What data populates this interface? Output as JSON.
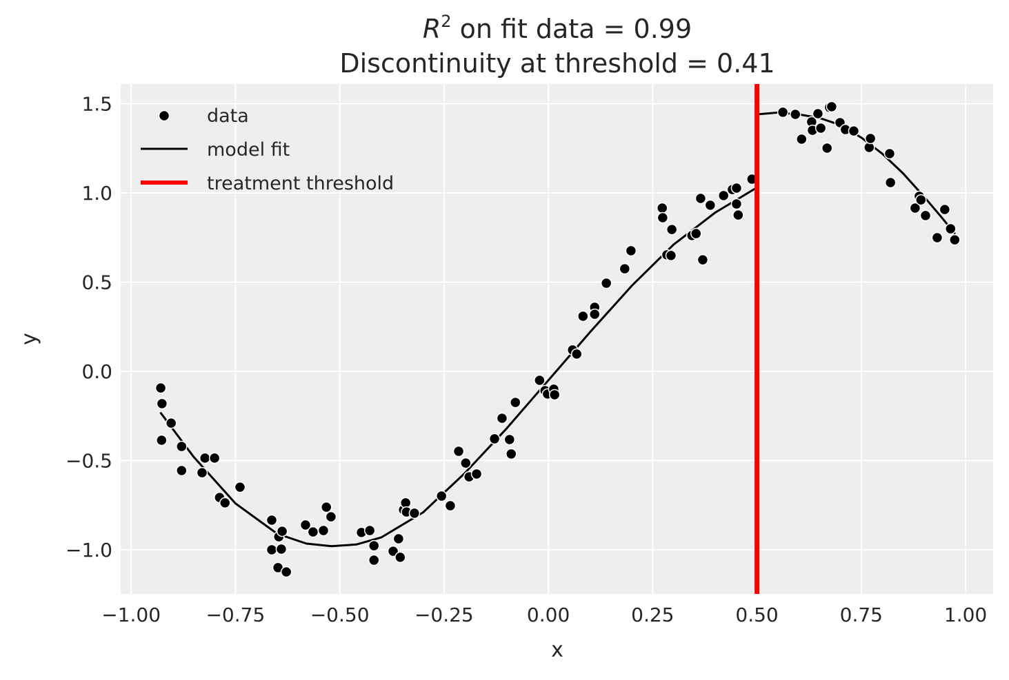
{
  "chart_data": {
    "type": "scatter",
    "title": {
      "line1_symbol": "R",
      "line1_superscript": "2",
      "line1_text": " on fit data = 0.99",
      "line2": "Discontinuity at threshold = 0.41"
    },
    "xlabel": "x",
    "ylabel": "y",
    "xlim": [
      -1.025,
      1.066
    ],
    "ylim": [
      -1.247,
      1.61
    ],
    "grid": true,
    "legend_placement": "top-left",
    "x_ticks": [
      -1.0,
      -0.75,
      -0.5,
      -0.25,
      0.0,
      0.25,
      0.5,
      0.75,
      1.0
    ],
    "x_tick_labels": [
      "−1.00",
      "−0.75",
      "−0.50",
      "−0.25",
      "0.00",
      "0.25",
      "0.50",
      "0.75",
      "1.00"
    ],
    "y_ticks": [
      -1.0,
      -0.5,
      0.0,
      0.5,
      1.0,
      1.5
    ],
    "y_tick_labels": [
      "−1.0",
      "−0.5",
      "0.0",
      "0.5",
      "1.0",
      "1.5"
    ],
    "colors": {
      "plot_background": "#eeeeee",
      "grid": "#ffffff",
      "points": "#000000",
      "fit": "#000000",
      "threshold": "#ff0000"
    },
    "series": [
      {
        "name": "data",
        "kind": "scatter",
        "points": [
          [
            -0.929,
            -0.093
          ],
          [
            -0.926,
            -0.181
          ],
          [
            -0.927,
            -0.386
          ],
          [
            -0.904,
            -0.29
          ],
          [
            -0.879,
            -0.421
          ],
          [
            -0.879,
            -0.556
          ],
          [
            -0.83,
            -0.568
          ],
          [
            -0.823,
            -0.486
          ],
          [
            -0.8,
            -0.486
          ],
          [
            -0.788,
            -0.707
          ],
          [
            -0.775,
            -0.737
          ],
          [
            -0.739,
            -0.649
          ],
          [
            -0.663,
            -0.834
          ],
          [
            -0.663,
            -1.0
          ],
          [
            -0.648,
            -1.1
          ],
          [
            -0.646,
            -0.927
          ],
          [
            -0.64,
            -0.996
          ],
          [
            -0.638,
            -0.896
          ],
          [
            -0.628,
            -1.124
          ],
          [
            -0.582,
            -0.861
          ],
          [
            -0.564,
            -0.9
          ],
          [
            -0.539,
            -0.892
          ],
          [
            -0.532,
            -0.761
          ],
          [
            -0.521,
            -0.815
          ],
          [
            -0.448,
            -0.903
          ],
          [
            -0.428,
            -0.892
          ],
          [
            -0.418,
            -0.977
          ],
          [
            -0.418,
            -1.058
          ],
          [
            -0.372,
            -1.008
          ],
          [
            -0.359,
            -0.938
          ],
          [
            -0.355,
            -1.042
          ],
          [
            -0.347,
            -0.776
          ],
          [
            -0.342,
            -0.737
          ],
          [
            -0.34,
            -0.788
          ],
          [
            -0.321,
            -0.795
          ],
          [
            -0.256,
            -0.699
          ],
          [
            -0.235,
            -0.753
          ],
          [
            -0.215,
            -0.448
          ],
          [
            -0.198,
            -0.514
          ],
          [
            -0.19,
            -0.591
          ],
          [
            -0.172,
            -0.575
          ],
          [
            -0.129,
            -0.378
          ],
          [
            -0.111,
            -0.263
          ],
          [
            -0.093,
            -0.382
          ],
          [
            -0.089,
            -0.463
          ],
          [
            -0.079,
            -0.174
          ],
          [
            -0.021,
            -0.05
          ],
          [
            -0.008,
            -0.108
          ],
          [
            -0.002,
            -0.127
          ],
          [
            0.013,
            -0.1
          ],
          [
            0.015,
            -0.131
          ],
          [
            0.058,
            0.12
          ],
          [
            0.068,
            0.097
          ],
          [
            0.083,
            0.309
          ],
          [
            0.111,
            0.359
          ],
          [
            0.111,
            0.32
          ],
          [
            0.139,
            0.494
          ],
          [
            0.183,
            0.575
          ],
          [
            0.198,
            0.676
          ],
          [
            0.273,
            0.915
          ],
          [
            0.274,
            0.861
          ],
          [
            0.284,
            0.653
          ],
          [
            0.294,
            0.649
          ],
          [
            0.296,
            0.795
          ],
          [
            0.344,
            0.761
          ],
          [
            0.354,
            0.772
          ],
          [
            0.365,
            0.969
          ],
          [
            0.37,
            0.625
          ],
          [
            0.388,
            0.931
          ],
          [
            0.42,
            0.985
          ],
          [
            0.441,
            1.019
          ],
          [
            0.451,
            1.027
          ],
          [
            0.451,
            0.938
          ],
          [
            0.455,
            0.876
          ],
          [
            0.488,
            1.077
          ],
          [
            0.562,
            1.452
          ],
          [
            0.592,
            1.44
          ],
          [
            0.607,
            1.301
          ],
          [
            0.631,
            1.398
          ],
          [
            0.633,
            1.351
          ],
          [
            0.646,
            1.444
          ],
          [
            0.653,
            1.363
          ],
          [
            0.668,
            1.251
          ],
          [
            0.674,
            1.479
          ],
          [
            0.679,
            1.483
          ],
          [
            0.699,
            1.394
          ],
          [
            0.712,
            1.355
          ],
          [
            0.732,
            1.347
          ],
          [
            0.769,
            1.255
          ],
          [
            0.772,
            1.305
          ],
          [
            0.818,
            1.22
          ],
          [
            0.82,
            1.058
          ],
          [
            0.879,
            0.915
          ],
          [
            0.889,
            0.981
          ],
          [
            0.893,
            0.961
          ],
          [
            0.904,
            0.873
          ],
          [
            0.932,
            0.749
          ],
          [
            0.95,
            0.907
          ],
          [
            0.964,
            0.799
          ],
          [
            0.974,
            0.737
          ]
        ]
      },
      {
        "name": "model fit",
        "kind": "line",
        "segments": [
          [
            [
              -0.93,
              -0.23
            ],
            [
              -0.85,
              -0.48
            ],
            [
              -0.75,
              -0.74
            ],
            [
              -0.65,
              -0.91
            ],
            [
              -0.58,
              -0.965
            ],
            [
              -0.52,
              -0.98
            ],
            [
              -0.46,
              -0.97
            ],
            [
              -0.4,
              -0.93
            ],
            [
              -0.3,
              -0.79
            ],
            [
              -0.2,
              -0.57
            ],
            [
              -0.1,
              -0.32
            ],
            [
              0.0,
              -0.05
            ],
            [
              0.1,
              0.22
            ],
            [
              0.2,
              0.48
            ],
            [
              0.3,
              0.71
            ],
            [
              0.4,
              0.89
            ],
            [
              0.45,
              0.96
            ],
            [
              0.5,
              1.03
            ]
          ],
          [
            [
              0.5,
              1.44
            ],
            [
              0.55,
              1.45
            ],
            [
              0.6,
              1.44
            ],
            [
              0.65,
              1.42
            ],
            [
              0.7,
              1.38
            ],
            [
              0.75,
              1.31
            ],
            [
              0.8,
              1.22
            ],
            [
              0.85,
              1.11
            ],
            [
              0.9,
              0.98
            ],
            [
              0.94,
              0.87
            ],
            [
              0.975,
              0.77
            ]
          ]
        ]
      },
      {
        "name": "treatment threshold",
        "kind": "vline",
        "x": 0.5
      }
    ]
  }
}
